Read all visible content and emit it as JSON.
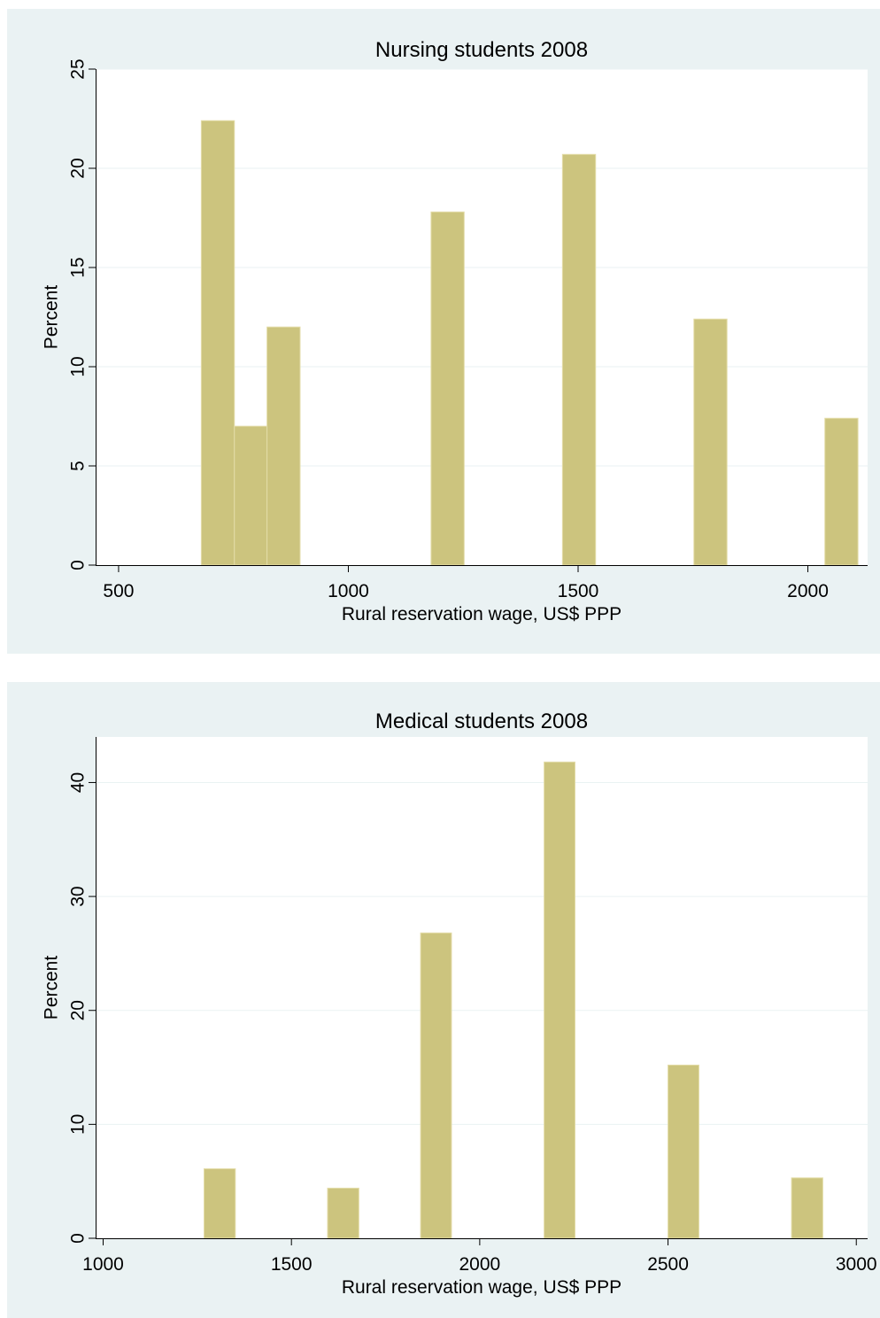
{
  "chart_data": [
    {
      "type": "bar",
      "title": "Nursing students 2008",
      "xlabel": "Rural reservation wage, US$ PPP",
      "ylabel": "Percent",
      "xlim": [
        450,
        2130
      ],
      "ylim": [
        0,
        25
      ],
      "xticks": [
        500,
        1000,
        1500,
        2000
      ],
      "yticks": [
        0,
        5,
        10,
        15,
        20,
        25
      ],
      "bars": [
        {
          "x0": 680,
          "x1": 752,
          "value": 22.4
        },
        {
          "x0": 752,
          "x1": 823,
          "value": 7.0
        },
        {
          "x0": 823,
          "x1": 895,
          "value": 12.0
        },
        {
          "x0": 1180,
          "x1": 1252,
          "value": 17.8
        },
        {
          "x0": 1466,
          "x1": 1538,
          "value": 20.7
        },
        {
          "x0": 1752,
          "x1": 1824,
          "value": 12.4
        },
        {
          "x0": 2037,
          "x1": 2109,
          "value": 7.4
        }
      ],
      "grid": true
    },
    {
      "type": "bar",
      "title": "Medical students 2008",
      "xlabel": "Rural reservation wage, US$ PPP",
      "ylabel": "Percent",
      "xlim": [
        980,
        3030
      ],
      "ylim": [
        0,
        44
      ],
      "xticks": [
        1000,
        1500,
        2000,
        2500,
        3000
      ],
      "yticks": [
        0,
        10,
        20,
        30,
        40
      ],
      "bars": [
        {
          "x0": 1268,
          "x1": 1351,
          "value": 6.1
        },
        {
          "x0": 1596,
          "x1": 1679,
          "value": 4.4
        },
        {
          "x0": 1843,
          "x1": 1925,
          "value": 26.8
        },
        {
          "x0": 2171,
          "x1": 2253,
          "value": 41.8
        },
        {
          "x0": 2500,
          "x1": 2582,
          "value": 15.2
        },
        {
          "x0": 2828,
          "x1": 2911,
          "value": 5.3
        }
      ],
      "grid": true
    }
  ]
}
